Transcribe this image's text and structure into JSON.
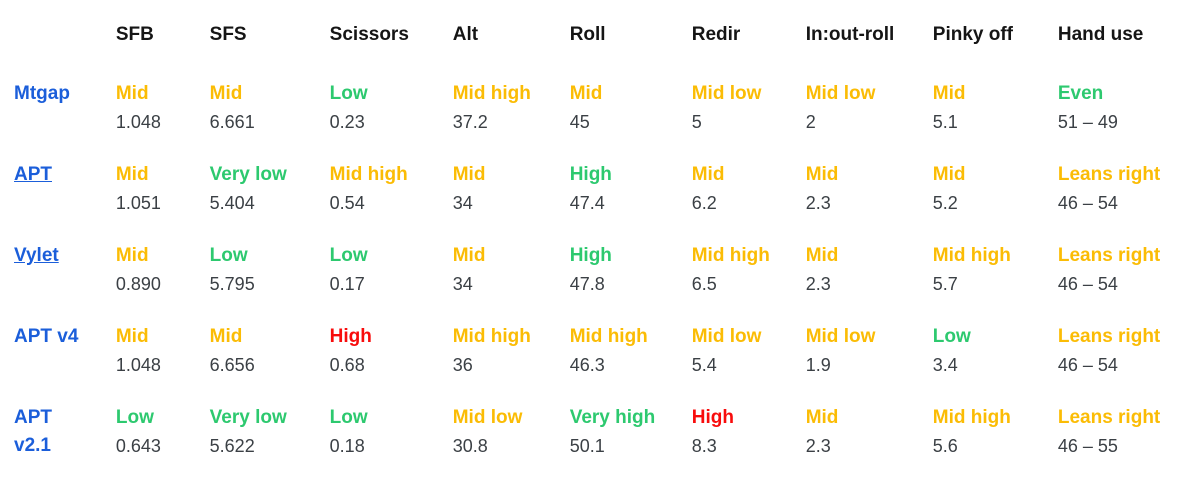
{
  "palette": {
    "label_blue": "#1B5EDA",
    "rating_orange": "#FBBC05",
    "rating_green": "#2DC96F",
    "rating_red": "#F80C0C",
    "value_gray": "#3B4045",
    "header_black": "#151515"
  },
  "table": {
    "columns": [
      "",
      "SFB",
      "SFS",
      "Scissors",
      "Alt",
      "Roll",
      "Redir",
      "In:out-roll",
      "Pinky off",
      "Hand use"
    ],
    "rows": [
      {
        "name": "Mtgap",
        "link": false,
        "cells": [
          {
            "rating": "Mid",
            "tone": "orange",
            "value": "1.048"
          },
          {
            "rating": "Mid",
            "tone": "orange",
            "value": "6.661"
          },
          {
            "rating": "Low",
            "tone": "green",
            "value": "0.23"
          },
          {
            "rating": "Mid high",
            "tone": "orange",
            "value": "37.2"
          },
          {
            "rating": "Mid",
            "tone": "orange",
            "value": "45"
          },
          {
            "rating": "Mid low",
            "tone": "orange",
            "value": "5"
          },
          {
            "rating": "Mid low",
            "tone": "orange",
            "value": "2"
          },
          {
            "rating": "Mid",
            "tone": "orange",
            "value": "5.1"
          },
          {
            "rating": "Even",
            "tone": "green",
            "value": "51 – 49"
          }
        ]
      },
      {
        "name": "APT",
        "link": true,
        "cells": [
          {
            "rating": "Mid",
            "tone": "orange",
            "value": "1.051"
          },
          {
            "rating": "Very low",
            "tone": "green",
            "value": "5.404"
          },
          {
            "rating": "Mid high",
            "tone": "orange",
            "value": "0.54"
          },
          {
            "rating": "Mid",
            "tone": "orange",
            "value": "34"
          },
          {
            "rating": "High",
            "tone": "green",
            "value": "47.4"
          },
          {
            "rating": "Mid",
            "tone": "orange",
            "value": "6.2"
          },
          {
            "rating": "Mid",
            "tone": "orange",
            "value": "2.3"
          },
          {
            "rating": "Mid",
            "tone": "orange",
            "value": "5.2"
          },
          {
            "rating": "Leans right",
            "tone": "orange",
            "value": "46 – 54"
          }
        ]
      },
      {
        "name": "Vylet",
        "link": true,
        "cells": [
          {
            "rating": "Mid",
            "tone": "orange",
            "value": "0.890"
          },
          {
            "rating": "Low",
            "tone": "green",
            "value": "5.795"
          },
          {
            "rating": "Low",
            "tone": "green",
            "value": "0.17"
          },
          {
            "rating": "Mid",
            "tone": "orange",
            "value": "34"
          },
          {
            "rating": "High",
            "tone": "green",
            "value": "47.8"
          },
          {
            "rating": "Mid high",
            "tone": "orange",
            "value": "6.5"
          },
          {
            "rating": "Mid",
            "tone": "orange",
            "value": "2.3"
          },
          {
            "rating": "Mid high",
            "tone": "orange",
            "value": "5.7"
          },
          {
            "rating": "Leans right",
            "tone": "orange",
            "value": "46 – 54"
          }
        ]
      },
      {
        "name": "APT v4",
        "link": false,
        "cells": [
          {
            "rating": "Mid",
            "tone": "orange",
            "value": "1.048"
          },
          {
            "rating": "Mid",
            "tone": "orange",
            "value": "6.656"
          },
          {
            "rating": "High",
            "tone": "red",
            "value": "0.68"
          },
          {
            "rating": "Mid high",
            "tone": "orange",
            "value": "36"
          },
          {
            "rating": "Mid high",
            "tone": "orange",
            "value": "46.3"
          },
          {
            "rating": "Mid low",
            "tone": "orange",
            "value": "5.4"
          },
          {
            "rating": "Mid low",
            "tone": "orange",
            "value": "1.9"
          },
          {
            "rating": "Low",
            "tone": "green",
            "value": "3.4"
          },
          {
            "rating": "Leans right",
            "tone": "orange",
            "value": "46 – 54"
          }
        ]
      },
      {
        "name": "APT v2.1",
        "link": false,
        "cells": [
          {
            "rating": "Low",
            "tone": "green",
            "value": "0.643"
          },
          {
            "rating": "Very low",
            "tone": "green",
            "value": "5.622"
          },
          {
            "rating": "Low",
            "tone": "green",
            "value": "0.18"
          },
          {
            "rating": "Mid low",
            "tone": "orange",
            "value": "30.8"
          },
          {
            "rating": "Very high",
            "tone": "green",
            "value": "50.1"
          },
          {
            "rating": "High",
            "tone": "red",
            "value": "8.3"
          },
          {
            "rating": "Mid",
            "tone": "orange",
            "value": "2.3"
          },
          {
            "rating": "Mid high",
            "tone": "orange",
            "value": "5.6"
          },
          {
            "rating": "Leans right",
            "tone": "orange",
            "value": "46 – 55"
          }
        ]
      }
    ]
  }
}
